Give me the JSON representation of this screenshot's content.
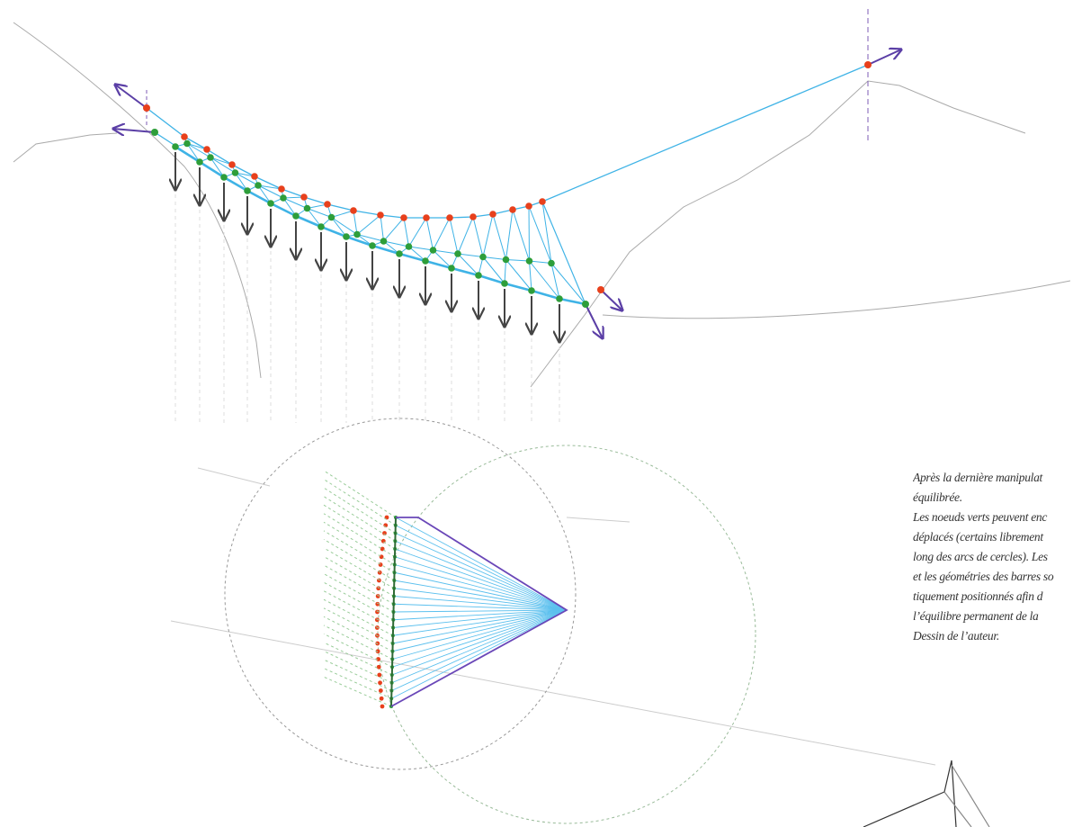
{
  "caption": {
    "lines": [
      "Après la dernière manipulat",
      "équilibrée.",
      "Les noeuds verts peuvent enc",
      "déplacés (certains librement",
      "long des arcs de cercles). Les",
      "et les géométries des barres so",
      "tiquement positionnés afin d",
      "l’équilibre permanent de la",
      "Dessin de l’auteur."
    ]
  }
}
